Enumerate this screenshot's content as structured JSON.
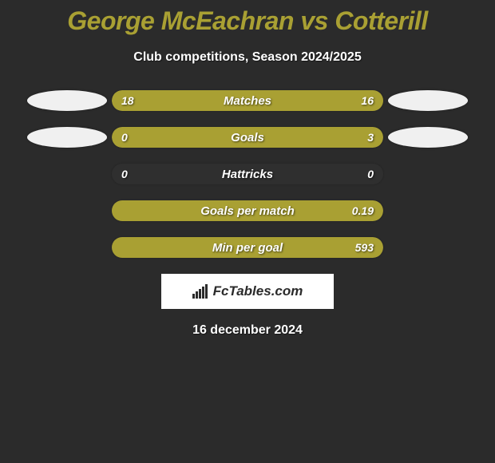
{
  "colors": {
    "page_bg": "#2b2b2b",
    "title": "#a9a033",
    "text": "#ffffff",
    "bar_track": "#2f2f2f",
    "bar_fill": "#a9a033",
    "avatar_bg": "#f0f0f0",
    "logo_bg": "#ffffff",
    "logo_text": "#2b2b2b"
  },
  "title": "George McEachran vs Cotterill",
  "subtitle": "Club competitions, Season 2024/2025",
  "date": "16 december 2024",
  "logo_text": "FcTables.com",
  "stats": [
    {
      "label": "Matches",
      "left_val": "18",
      "right_val": "16",
      "left_pct": 100,
      "right_pct": 0,
      "show_left_avatar": true,
      "show_right_avatar": true
    },
    {
      "label": "Goals",
      "left_val": "0",
      "right_val": "3",
      "left_pct": 18,
      "right_pct": 82,
      "show_left_avatar": true,
      "show_right_avatar": true
    },
    {
      "label": "Hattricks",
      "left_val": "0",
      "right_val": "0",
      "left_pct": 0,
      "right_pct": 0,
      "show_left_avatar": false,
      "show_right_avatar": false
    },
    {
      "label": "Goals per match",
      "left_val": "",
      "right_val": "0.19",
      "left_pct": 0,
      "right_pct": 100,
      "show_left_avatar": false,
      "show_right_avatar": false
    },
    {
      "label": "Min per goal",
      "left_val": "",
      "right_val": "593",
      "left_pct": 0,
      "right_pct": 100,
      "show_left_avatar": false,
      "show_right_avatar": false
    }
  ]
}
